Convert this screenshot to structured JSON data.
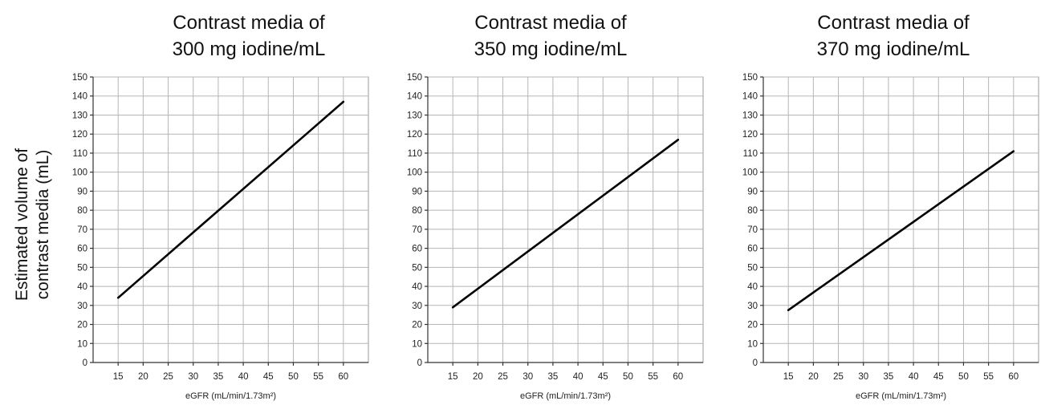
{
  "figure": {
    "ylabel_lines": [
      "Estimated volume of",
      "contrast media (mL)"
    ]
  },
  "chart_data": [
    {
      "type": "line",
      "title_lines": [
        "Contrast media of",
        "300 mg iodine/mL"
      ],
      "xlabel": "eGFR (mL/min/1.73m²)",
      "ylabel": "Estimated volume of contrast media (mL)",
      "xticks": [
        15,
        20,
        25,
        30,
        35,
        40,
        45,
        50,
        55,
        60
      ],
      "yticks": [
        0,
        10,
        20,
        30,
        40,
        50,
        60,
        70,
        80,
        90,
        100,
        110,
        120,
        130,
        140,
        150
      ],
      "xlim": [
        10,
        65
      ],
      "ylim": [
        0,
        150
      ],
      "grid": true,
      "series": [
        {
          "x": [
            15,
            60
          ],
          "y": [
            34,
            137
          ]
        }
      ]
    },
    {
      "type": "line",
      "title_lines": [
        "Contrast media of",
        "350 mg iodine/mL"
      ],
      "xlabel": "eGFR (mL/min/1.73m²)",
      "ylabel": "",
      "xticks": [
        15,
        20,
        25,
        30,
        35,
        40,
        45,
        50,
        55,
        60
      ],
      "yticks": [
        0,
        10,
        20,
        30,
        40,
        50,
        60,
        70,
        80,
        90,
        100,
        110,
        120,
        130,
        140,
        150
      ],
      "xlim": [
        10,
        65
      ],
      "ylim": [
        0,
        150
      ],
      "grid": true,
      "series": [
        {
          "x": [
            15,
            60
          ],
          "y": [
            29,
            117
          ]
        }
      ]
    },
    {
      "type": "line",
      "title_lines": [
        "Contrast media of",
        "370 mg iodine/mL"
      ],
      "xlabel": "eGFR (mL/min/1.73m²)",
      "ylabel": "",
      "xticks": [
        15,
        20,
        25,
        30,
        35,
        40,
        45,
        50,
        55,
        60
      ],
      "yticks": [
        0,
        10,
        20,
        30,
        40,
        50,
        60,
        70,
        80,
        90,
        100,
        110,
        120,
        130,
        140,
        150
      ],
      "xlim": [
        10,
        65
      ],
      "ylim": [
        0,
        150
      ],
      "grid": true,
      "series": [
        {
          "x": [
            15,
            60
          ],
          "y": [
            27.5,
            111
          ]
        }
      ]
    }
  ]
}
